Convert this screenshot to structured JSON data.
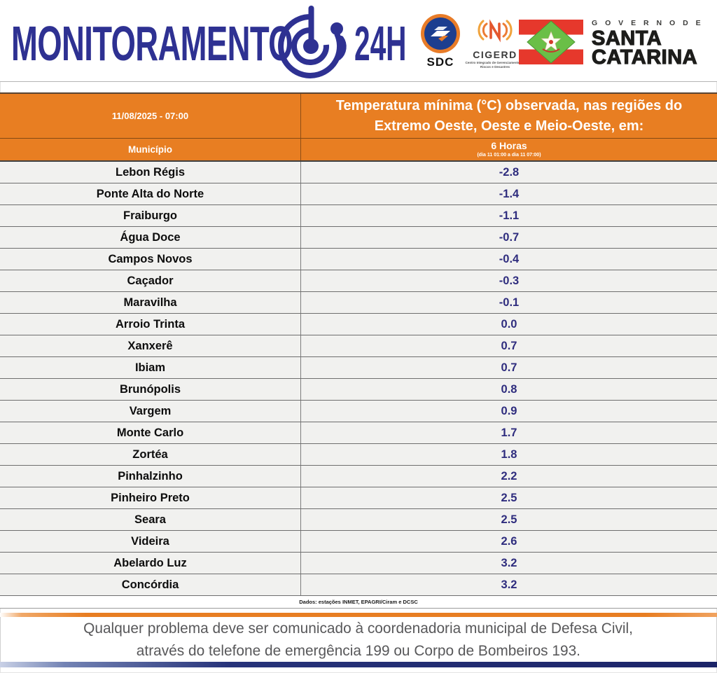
{
  "brand": {
    "title": "MONITORAMENTO",
    "suffix": "24H"
  },
  "logos": {
    "sdc": "SDC",
    "cigerd": "CIGERD",
    "cigerd_subtitle": "Centro Integrado de Gerenciamento de Riscos e Desastres",
    "governo_de": "G O V E R N O   D E",
    "state_line1": "SANTA",
    "state_line2": "CATARINA"
  },
  "table": {
    "datetime": "11/08/2025 - 07:00",
    "title": "Temperatura mínima (°C) observada, nas regiões do Extremo Oeste, Oeste e Meio-Oeste, em:",
    "municipality_header": "Município",
    "period_header": "6 Horas",
    "period_subtitle": "(dia 11 01:00 a dia 11 07:00)",
    "source": "Dados: estações INMET, EPAGRI/Ciram e DCSC",
    "rows": [
      {
        "municipio": "Lebon Régis",
        "valor": "-2.8"
      },
      {
        "municipio": "Ponte Alta do Norte",
        "valor": "-1.4"
      },
      {
        "municipio": "Fraiburgo",
        "valor": "-1.1"
      },
      {
        "municipio": "Água Doce",
        "valor": "-0.7"
      },
      {
        "municipio": "Campos Novos",
        "valor": "-0.4"
      },
      {
        "municipio": "Caçador",
        "valor": "-0.3"
      },
      {
        "municipio": "Maravilha",
        "valor": "-0.1"
      },
      {
        "municipio": "Arroio Trinta",
        "valor": "0.0"
      },
      {
        "municipio": "Xanxerê",
        "valor": "0.7"
      },
      {
        "municipio": "Ibiam",
        "valor": "0.7"
      },
      {
        "municipio": "Brunópolis",
        "valor": "0.8"
      },
      {
        "municipio": "Vargem",
        "valor": "0.9"
      },
      {
        "municipio": "Monte Carlo",
        "valor": "1.7"
      },
      {
        "municipio": "Zortéa",
        "valor": "1.8"
      },
      {
        "municipio": "Pinhalzinho",
        "valor": "2.2"
      },
      {
        "municipio": "Pinheiro Preto",
        "valor": "2.5"
      },
      {
        "municipio": "Seara",
        "valor": "2.5"
      },
      {
        "municipio": "Videira",
        "valor": "2.6"
      },
      {
        "municipio": "Abelardo Luz",
        "valor": "3.2"
      },
      {
        "municipio": "Concórdia",
        "valor": "3.2"
      }
    ]
  },
  "footer": {
    "line1": "Qualquer problema deve ser comunicado à coordenadoria municipal de Defesa Civil,",
    "line2": "através do telefone de emergência 199 ou Corpo de Bombeiros 193."
  },
  "colors": {
    "accent_orange": "#E87E22",
    "brand_indigo": "#2E3192",
    "value_blue": "#2F2D7E",
    "flag_red": "#E6382C",
    "flag_green": "#6ABF47"
  },
  "chart_data": {
    "type": "table",
    "title": "Temperatura mínima (°C) observada, nas regiões do Extremo Oeste, Oeste e Meio-Oeste",
    "columns": [
      "Município",
      "6 Horas (dia 11 01:00 a dia 11 07:00)"
    ],
    "rows": [
      [
        "Lebon Régis",
        -2.8
      ],
      [
        "Ponte Alta do Norte",
        -1.4
      ],
      [
        "Fraiburgo",
        -1.1
      ],
      [
        "Água Doce",
        -0.7
      ],
      [
        "Campos Novos",
        -0.4
      ],
      [
        "Caçador",
        -0.3
      ],
      [
        "Maravilha",
        -0.1
      ],
      [
        "Arroio Trinta",
        0.0
      ],
      [
        "Xanxerê",
        0.7
      ],
      [
        "Ibiam",
        0.7
      ],
      [
        "Brunópolis",
        0.8
      ],
      [
        "Vargem",
        0.9
      ],
      [
        "Monte Carlo",
        1.7
      ],
      [
        "Zortéa",
        1.8
      ],
      [
        "Pinhalzinho",
        2.2
      ],
      [
        "Pinheiro Preto",
        2.5
      ],
      [
        "Seara",
        2.5
      ],
      [
        "Videira",
        2.6
      ],
      [
        "Abelardo Luz",
        3.2
      ],
      [
        "Concórdia",
        3.2
      ]
    ]
  }
}
